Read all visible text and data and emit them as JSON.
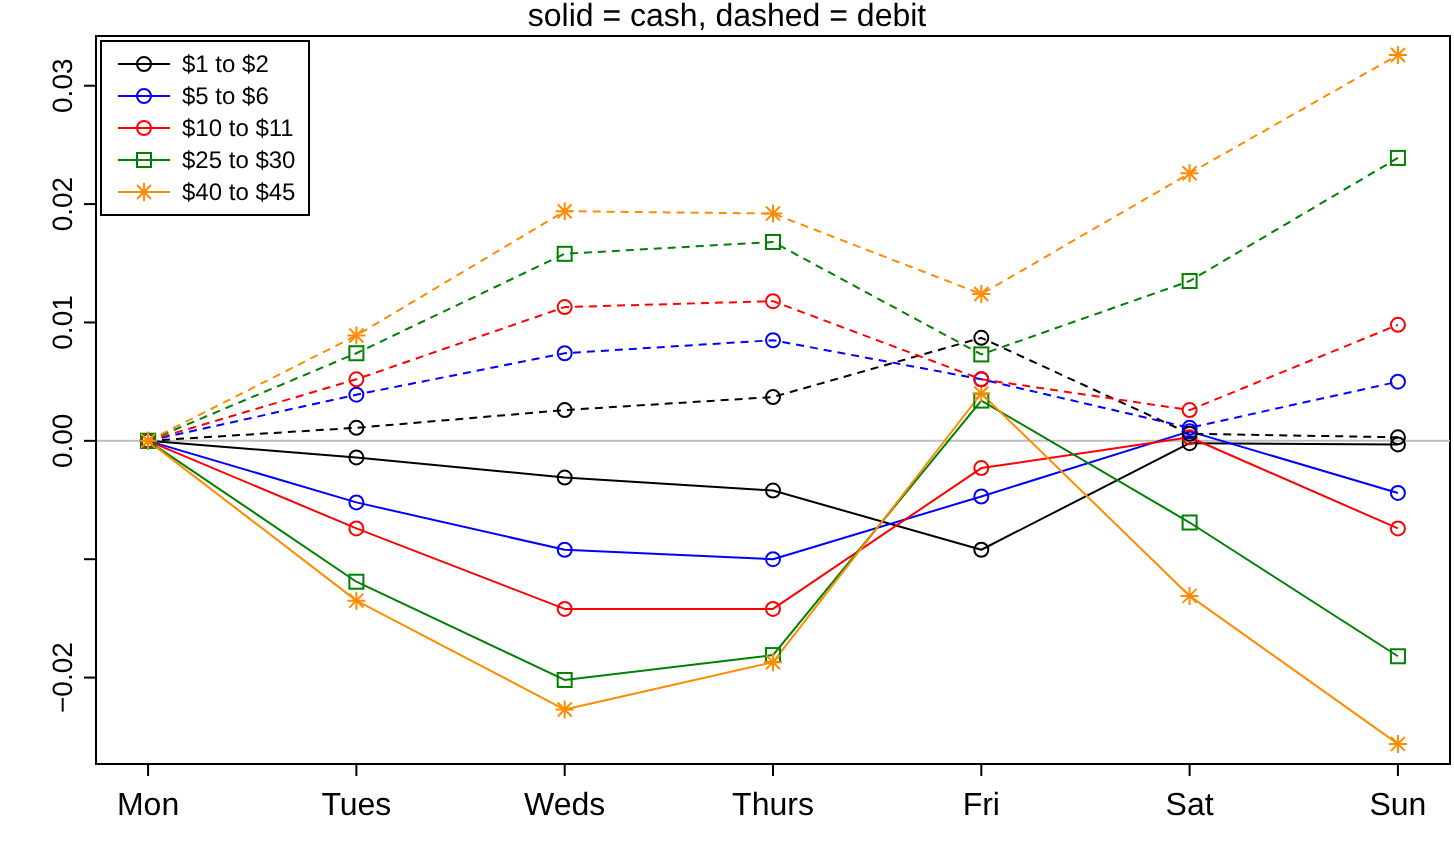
{
  "chart_data": {
    "type": "line",
    "title": "solid = cash, dashed = debit",
    "categories": [
      "Mon",
      "Tues",
      "Weds",
      "Thurs",
      "Fri",
      "Sat",
      "Sun"
    ],
    "ylim": [
      -0.0273,
      0.0342
    ],
    "yticks": [
      {
        "value": -0.02,
        "label": "−0.02"
      },
      {
        "value": -0.01,
        "label": null
      },
      {
        "value": 0,
        "label": "0.00"
      },
      0.01,
      0.02,
      0.03
    ],
    "grid": false,
    "legend": "top left",
    "ref_lines": [
      {
        "axis": "y",
        "value": 0,
        "label": null,
        "color": "#bebebe"
      }
    ],
    "series": [
      {
        "name": "$1 to $2",
        "color": "#000000",
        "marker": "circle",
        "line_style": "solid",
        "values": [
          0,
          -0.0014,
          -0.0031,
          -0.0042,
          -0.0092,
          -0.0002,
          -0.0003
        ]
      },
      {
        "name": "$5 to $6",
        "color": "#0000ff",
        "marker": "circle",
        "line_style": "solid",
        "values": [
          0,
          -0.0052,
          -0.0092,
          -0.01,
          -0.0047,
          0.0008,
          -0.0044
        ]
      },
      {
        "name": "$10 to $11",
        "color": "#ff0000",
        "marker": "circle",
        "line_style": "solid",
        "values": [
          0,
          -0.0074,
          -0.0142,
          -0.0142,
          -0.0023,
          0.0003,
          -0.0074
        ]
      },
      {
        "name": "$25 to $30",
        "color": "#008000",
        "marker": "square",
        "line_style": "solid",
        "values": [
          0,
          -0.0119,
          -0.0202,
          -0.0181,
          0.0034,
          -0.0069,
          -0.0182
        ]
      },
      {
        "name": "$40 to $45",
        "color": "#ff8c00",
        "marker": "cross",
        "line_style": "solid",
        "values": [
          0,
          -0.0135,
          -0.0227,
          -0.0187,
          0.004,
          -0.0131,
          -0.0256
        ]
      },
      {
        "color": "#000000",
        "marker": "circle",
        "line_style": "dashed",
        "values": [
          0,
          0.0011,
          0.0026,
          0.0037,
          0.0087,
          0.0006,
          0.0003
        ]
      },
      {
        "color": "#0000ff",
        "marker": "circle",
        "line_style": "dashed",
        "values": [
          0,
          0.0039,
          0.0074,
          0.0085,
          0.0052,
          0.0011,
          0.005
        ]
      },
      {
        "color": "#ff0000",
        "marker": "circle",
        "line_style": "dashed",
        "values": [
          0,
          0.0052,
          0.0113,
          0.0118,
          0.0052,
          0.0026,
          0.0098
        ]
      },
      {
        "color": "#008000",
        "marker": "square",
        "line_style": "dashed",
        "values": [
          0,
          0.0074,
          0.0158,
          0.0168,
          0.0073,
          0.0135,
          0.0239
        ]
      },
      {
        "color": "#ff8c00",
        "marker": "cross",
        "line_style": "dashed",
        "values": [
          0,
          0.0089,
          0.0194,
          0.0192,
          0.0124,
          0.0226,
          0.0326
        ]
      }
    ]
  }
}
